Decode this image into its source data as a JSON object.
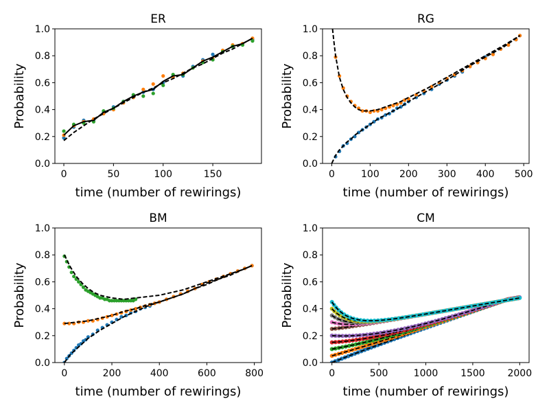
{
  "chart_data": [
    {
      "type": "scatter",
      "title": "ER",
      "xlabel": "time (number of rewirings)",
      "ylabel": "Probability",
      "xlim": [
        -9,
        199
      ],
      "ylim": [
        0.0,
        1.0
      ],
      "xticks": [
        0,
        50,
        100,
        150
      ],
      "yticks": [
        0.0,
        0.2,
        0.4,
        0.6,
        0.8,
        1.0
      ],
      "series": [
        {
          "name": "series 1",
          "color": "#1f77b4",
          "x": [
            0,
            10,
            20,
            30,
            40,
            50,
            60,
            70,
            80,
            90,
            100,
            110,
            120,
            130,
            140,
            150,
            160,
            170,
            180,
            190
          ],
          "values": [
            0.19,
            0.27,
            0.32,
            0.32,
            0.38,
            0.42,
            0.46,
            0.5,
            0.53,
            0.55,
            0.6,
            0.65,
            0.65,
            0.72,
            0.77,
            0.81,
            0.83,
            0.87,
            0.89,
            0.92
          ]
        },
        {
          "name": "series 2",
          "color": "#ff7f0e",
          "x": [
            0,
            10,
            20,
            30,
            40,
            50,
            60,
            70,
            80,
            90,
            100,
            110,
            120,
            130,
            140,
            150,
            160,
            170,
            180,
            190
          ],
          "values": [
            0.21,
            0.28,
            0.31,
            0.33,
            0.37,
            0.4,
            0.45,
            0.49,
            0.55,
            0.59,
            0.65,
            0.64,
            0.67,
            0.71,
            0.76,
            0.78,
            0.84,
            0.88,
            0.89,
            0.93
          ]
        },
        {
          "name": "series 3",
          "color": "#2ca02c",
          "x": [
            0,
            10,
            20,
            30,
            40,
            50,
            60,
            70,
            80,
            90,
            100,
            110,
            120,
            130,
            140,
            150,
            160,
            170,
            180,
            190
          ],
          "values": [
            0.24,
            0.29,
            0.3,
            0.31,
            0.39,
            0.41,
            0.46,
            0.51,
            0.5,
            0.52,
            0.58,
            0.66,
            0.66,
            0.71,
            0.75,
            0.77,
            0.83,
            0.87,
            0.88,
            0.91
          ]
        }
      ],
      "fits": [
        {
          "style": "solid",
          "color": "#000000",
          "x": [
            0,
            10,
            20,
            30,
            40,
            50,
            60,
            70,
            80,
            90,
            100,
            110,
            120,
            130,
            140,
            150,
            160,
            170,
            180,
            190
          ],
          "values": [
            0.21,
            0.28,
            0.31,
            0.32,
            0.38,
            0.41,
            0.46,
            0.5,
            0.53,
            0.55,
            0.61,
            0.65,
            0.66,
            0.71,
            0.76,
            0.79,
            0.83,
            0.87,
            0.89,
            0.93
          ]
        },
        {
          "style": "dashed",
          "color": "#000000",
          "x": [
            0,
            10,
            20,
            30,
            40,
            50,
            60,
            70,
            80,
            90,
            100,
            110,
            120,
            130,
            140,
            150,
            160,
            170,
            180,
            190
          ],
          "values": [
            0.17,
            0.23,
            0.28,
            0.33,
            0.37,
            0.41,
            0.45,
            0.49,
            0.53,
            0.56,
            0.6,
            0.63,
            0.67,
            0.71,
            0.74,
            0.78,
            0.82,
            0.85,
            0.89,
            0.93
          ]
        }
      ]
    },
    {
      "type": "scatter",
      "title": "RG",
      "xlabel": "time (number of rewirings)",
      "ylabel": "Probability",
      "xlim": [
        -24,
        514
      ],
      "ylim": [
        0.0,
        1.0
      ],
      "xticks": [
        0,
        100,
        200,
        300,
        400,
        500
      ],
      "yticks": [
        0.0,
        0.2,
        0.4,
        0.6,
        0.8,
        1.0
      ],
      "series": [
        {
          "name": "series 1",
          "color": "#1f77b4",
          "x": [
            10,
            20,
            30,
            40,
            50,
            60,
            70,
            80,
            90,
            100,
            110,
            120,
            130,
            140,
            150,
            160,
            170,
            180,
            190,
            200,
            220,
            240,
            260,
            280,
            300,
            320,
            340,
            360,
            380,
            400,
            420,
            440,
            460,
            480,
            490
          ],
          "values": [
            0.05,
            0.09,
            0.13,
            0.15,
            0.18,
            0.2,
            0.23,
            0.25,
            0.27,
            0.29,
            0.31,
            0.33,
            0.34,
            0.36,
            0.37,
            0.39,
            0.41,
            0.42,
            0.44,
            0.46,
            0.49,
            0.52,
            0.55,
            0.59,
            0.62,
            0.65,
            0.68,
            0.72,
            0.75,
            0.79,
            0.82,
            0.85,
            0.88,
            0.92,
            0.95
          ]
        },
        {
          "name": "series 2",
          "color": "#ff7f0e",
          "x": [
            10,
            20,
            30,
            40,
            50,
            60,
            70,
            80,
            90,
            100,
            110,
            120,
            130,
            140,
            150,
            160,
            170,
            180,
            190,
            200,
            220,
            240,
            260,
            280,
            300,
            320,
            340,
            360,
            380,
            400,
            420,
            440,
            460,
            480,
            490
          ],
          "values": [
            0.79,
            0.65,
            0.56,
            0.5,
            0.46,
            0.43,
            0.41,
            0.39,
            0.39,
            0.38,
            0.39,
            0.39,
            0.4,
            0.41,
            0.42,
            0.43,
            0.44,
            0.45,
            0.47,
            0.48,
            0.51,
            0.54,
            0.57,
            0.6,
            0.63,
            0.66,
            0.69,
            0.72,
            0.75,
            0.78,
            0.81,
            0.85,
            0.88,
            0.92,
            0.95
          ]
        }
      ],
      "fits": [
        {
          "style": "dashed",
          "color": "#000000",
          "x": [
            2,
            5,
            10,
            20,
            30,
            40,
            50,
            60,
            70,
            80,
            90,
            100,
            120,
            140,
            160,
            180,
            200,
            250,
            300,
            350,
            400,
            450,
            490
          ],
          "values": [
            1.0,
            0.92,
            0.8,
            0.64,
            0.55,
            0.49,
            0.45,
            0.42,
            0.4,
            0.39,
            0.39,
            0.39,
            0.4,
            0.42,
            0.44,
            0.46,
            0.49,
            0.56,
            0.64,
            0.72,
            0.8,
            0.88,
            0.95
          ]
        },
        {
          "style": "dashed",
          "color": "#000000",
          "x": [
            0,
            10,
            20,
            30,
            40,
            50,
            60,
            80,
            100,
            120,
            140,
            160,
            180,
            200,
            250,
            300,
            350,
            400,
            450,
            490
          ],
          "values": [
            0.0,
            0.06,
            0.1,
            0.13,
            0.16,
            0.18,
            0.21,
            0.25,
            0.29,
            0.33,
            0.36,
            0.39,
            0.42,
            0.46,
            0.54,
            0.62,
            0.71,
            0.79,
            0.87,
            0.95
          ]
        }
      ]
    },
    {
      "type": "scatter",
      "title": "BM",
      "xlabel": "time (number of rewirings)",
      "ylabel": "Probability",
      "xlim": [
        -40,
        830
      ],
      "ylim": [
        0.0,
        1.0
      ],
      "xticks": [
        0,
        200,
        400,
        600,
        800
      ],
      "yticks": [
        0.0,
        0.2,
        0.4,
        0.6,
        0.8,
        1.0
      ],
      "series": [
        {
          "name": "series 1",
          "color": "#1f77b4",
          "x": [
            0,
            10,
            20,
            30,
            40,
            50,
            60,
            70,
            80,
            90,
            100,
            120,
            140,
            160,
            180,
            200,
            220,
            240,
            260,
            280,
            300,
            320,
            340,
            360,
            380,
            400,
            430,
            460,
            490,
            520,
            550,
            580,
            610,
            640,
            670,
            700,
            730,
            760,
            790
          ],
          "values": [
            0.0,
            0.03,
            0.05,
            0.07,
            0.09,
            0.11,
            0.13,
            0.14,
            0.16,
            0.17,
            0.19,
            0.21,
            0.24,
            0.26,
            0.28,
            0.3,
            0.32,
            0.34,
            0.35,
            0.37,
            0.38,
            0.4,
            0.41,
            0.42,
            0.44,
            0.45,
            0.47,
            0.49,
            0.51,
            0.53,
            0.55,
            0.58,
            0.6,
            0.62,
            0.64,
            0.66,
            0.68,
            0.7,
            0.72
          ]
        },
        {
          "name": "series 2",
          "color": "#ff7f0e",
          "x": [
            0,
            20,
            40,
            60,
            80,
            100,
            120,
            140,
            160,
            180,
            200,
            220,
            240,
            260,
            280,
            300,
            320,
            340,
            360,
            380,
            400,
            430,
            460,
            490,
            520,
            550,
            580,
            610,
            640,
            670,
            700,
            730,
            760,
            790
          ],
          "values": [
            0.29,
            0.29,
            0.29,
            0.3,
            0.3,
            0.31,
            0.31,
            0.32,
            0.33,
            0.34,
            0.35,
            0.36,
            0.37,
            0.38,
            0.39,
            0.4,
            0.41,
            0.42,
            0.43,
            0.44,
            0.45,
            0.47,
            0.49,
            0.51,
            0.53,
            0.55,
            0.58,
            0.6,
            0.62,
            0.64,
            0.66,
            0.68,
            0.7,
            0.72
          ]
        },
        {
          "name": "series 3",
          "color": "#2ca02c",
          "x": [
            0,
            10,
            20,
            30,
            40,
            50,
            60,
            70,
            80,
            90,
            100,
            110,
            120,
            130,
            140,
            150,
            160,
            170,
            180,
            190,
            200,
            210,
            220,
            230,
            240,
            250,
            260,
            270,
            280,
            290,
            300
          ],
          "values": [
            0.79,
            0.75,
            0.71,
            0.67,
            0.64,
            0.62,
            0.6,
            0.58,
            0.56,
            0.54,
            0.53,
            0.52,
            0.51,
            0.5,
            0.49,
            0.48,
            0.48,
            0.47,
            0.47,
            0.46,
            0.46,
            0.46,
            0.46,
            0.46,
            0.46,
            0.46,
            0.46,
            0.46,
            0.46,
            0.46,
            0.47
          ]
        }
      ],
      "fits": [
        {
          "style": "dashed",
          "color": "#000000",
          "x": [
            0,
            25,
            50,
            75,
            100,
            125,
            150,
            175,
            200,
            250,
            300,
            350,
            400,
            450,
            500,
            550,
            600,
            650,
            700,
            750,
            790
          ],
          "values": [
            0.8,
            0.71,
            0.64,
            0.59,
            0.55,
            0.52,
            0.5,
            0.49,
            0.48,
            0.47,
            0.48,
            0.49,
            0.5,
            0.52,
            0.54,
            0.57,
            0.6,
            0.63,
            0.66,
            0.69,
            0.72
          ]
        },
        {
          "style": "dashed",
          "color": "#000000",
          "x": [
            0,
            50,
            100,
            150,
            200,
            250,
            300,
            350,
            400,
            450,
            500,
            550,
            600,
            650,
            700,
            750,
            790
          ],
          "values": [
            0.29,
            0.3,
            0.31,
            0.33,
            0.35,
            0.38,
            0.4,
            0.43,
            0.45,
            0.48,
            0.51,
            0.55,
            0.59,
            0.62,
            0.65,
            0.69,
            0.72
          ]
        },
        {
          "style": "dashed",
          "color": "#000000",
          "x": [
            0,
            25,
            50,
            75,
            100,
            150,
            200,
            250,
            300,
            350,
            400,
            450,
            500,
            550,
            600,
            650,
            700,
            750,
            790
          ],
          "values": [
            0.0,
            0.06,
            0.1,
            0.14,
            0.18,
            0.24,
            0.29,
            0.34,
            0.38,
            0.42,
            0.45,
            0.48,
            0.51,
            0.55,
            0.58,
            0.62,
            0.66,
            0.69,
            0.72
          ]
        }
      ]
    },
    {
      "type": "scatter",
      "title": "CM",
      "xlabel": "time (number of rewirings)",
      "ylabel": "Probability",
      "xlim": [
        -100,
        2100
      ],
      "ylim": [
        0.0,
        1.0
      ],
      "xticks": [
        0,
        500,
        1000,
        1500,
        2000
      ],
      "yticks": [
        0.0,
        0.2,
        0.4,
        0.6,
        0.8,
        1.0
      ],
      "family": {
        "start_values": [
          0.0,
          0.05,
          0.1,
          0.15,
          0.2,
          0.25,
          0.3,
          0.35,
          0.4,
          0.45
        ],
        "end_value": 0.48,
        "end_time": 2000,
        "colors": [
          "#1f77b4",
          "#ff7f0e",
          "#2ca02c",
          "#d62728",
          "#9467bd",
          "#8c564b",
          "#e377c2",
          "#7f7f7f",
          "#bcbd22",
          "#17becf"
        ]
      }
    }
  ]
}
